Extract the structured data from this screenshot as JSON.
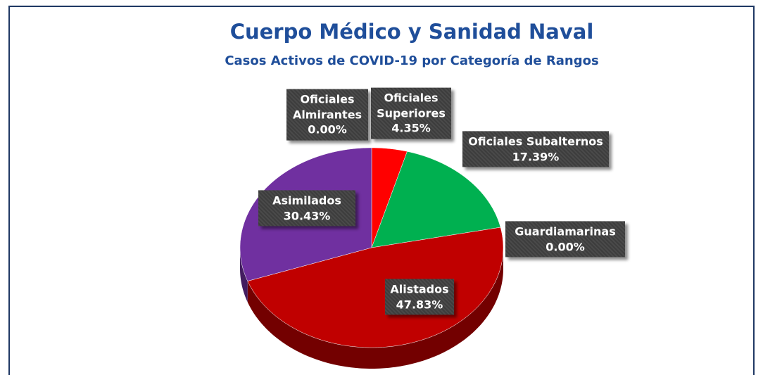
{
  "chart_data": {
    "type": "pie",
    "title": "Cuerpo Médico y Sanidad Naval",
    "subtitle": "Casos Activos de COVID-19 por Categoría de Rangos",
    "categories": [
      "Oficiales Almirantes",
      "Oficiales Superiores",
      "Oficiales Subalternos",
      "Guardiamarinas",
      "Alistados",
      "Asimilados"
    ],
    "values": [
      0,
      4.35,
      17.39,
      0,
      47.83,
      30.43
    ],
    "value_labels": [
      "0.00%",
      "4.35%",
      "17.39%",
      "0.00%",
      "47.83%",
      "30.43%"
    ],
    "colors": [
      "#4472c4",
      "#ff0000",
      "#00b050",
      "#ffc000",
      "#c00000",
      "#7030a0"
    ]
  }
}
